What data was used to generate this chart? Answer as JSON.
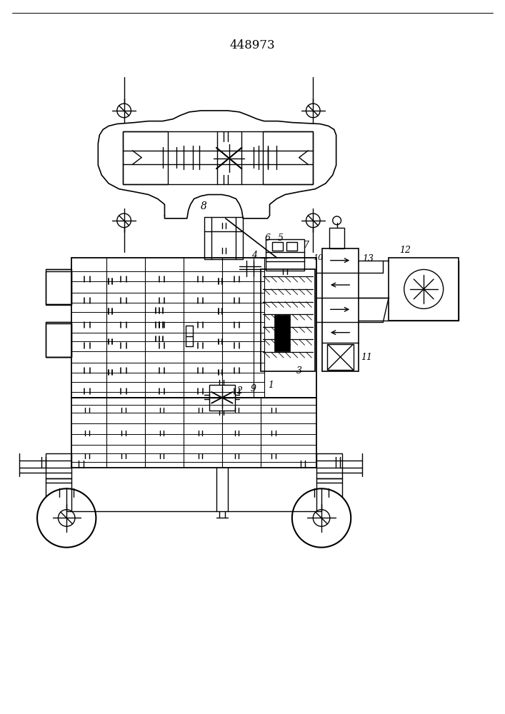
{
  "title": "448973",
  "bg_color": "#ffffff",
  "line_color": "#000000",
  "lw": 1.0,
  "fig_width": 7.07,
  "fig_height": 10.0,
  "dpi": 100
}
